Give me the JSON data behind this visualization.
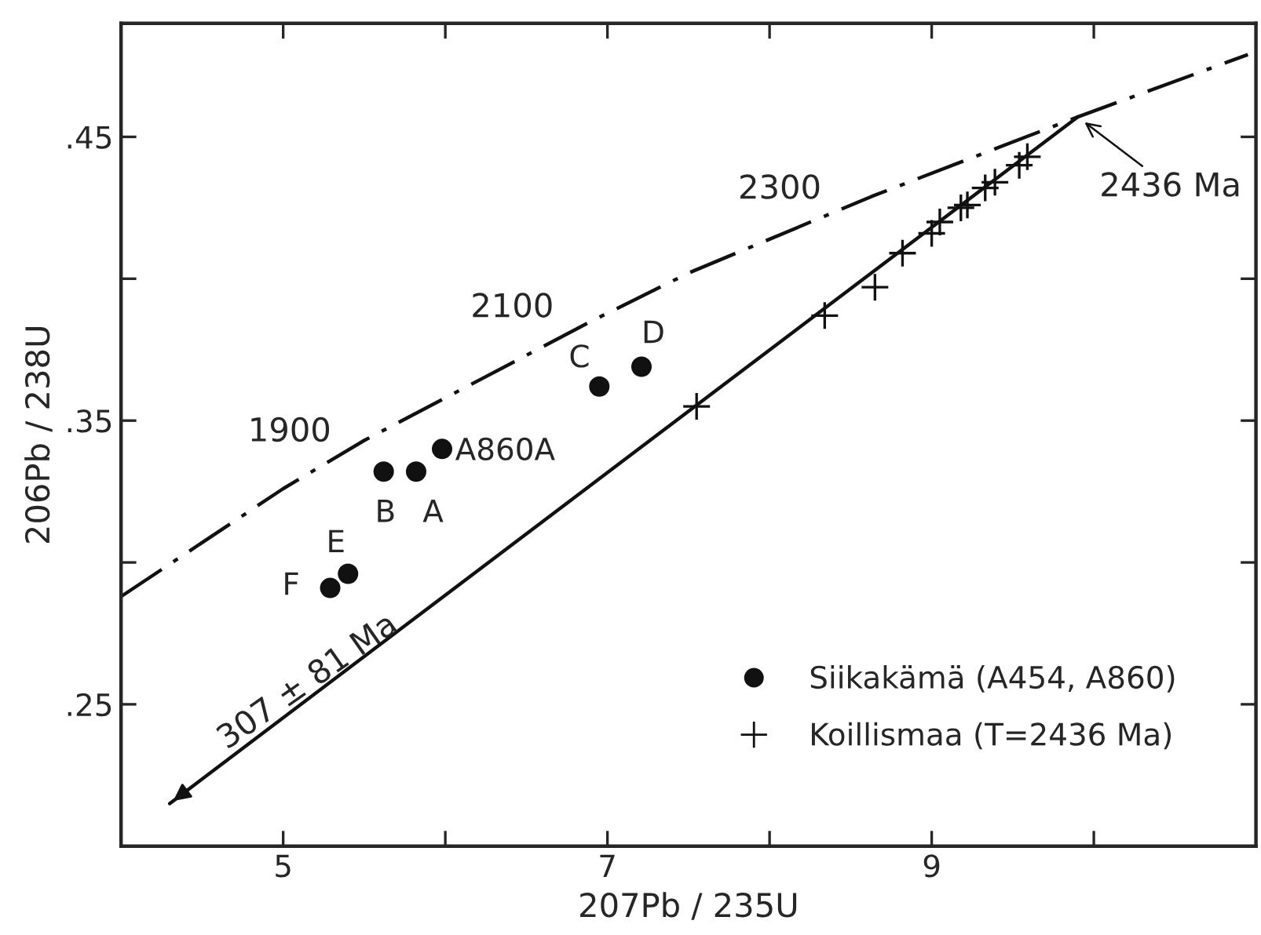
{
  "chart_data": {
    "type": "scatter",
    "xlabel": "207Pb / 235U",
    "ylabel": "206Pb / 238U",
    "xlim": [
      4,
      11
    ],
    "ylim": [
      0.2,
      0.49
    ],
    "xticks": [
      5,
      {
        "value": 6,
        "label": null
      },
      7,
      {
        "value": 8,
        "label": null
      },
      9,
      {
        "value": 10,
        "label": null
      }
    ],
    "yticks": [
      {
        "value": 0.25,
        "label": ".25"
      },
      {
        "value": 0.3,
        "label": null
      },
      {
        "value": 0.35,
        "label": ".35"
      },
      {
        "value": 0.4,
        "label": null
      },
      {
        "value": 0.45,
        "label": ".45"
      }
    ],
    "grid": false,
    "legend": "bottom right",
    "series": [
      {
        "type": "line",
        "color": "#111111",
        "line_style": "dashdot",
        "marker": "none",
        "x": [
          4.0,
          5.0,
          5.5,
          6.0,
          6.9,
          7.5,
          8.63,
          9.9,
          10.95
        ],
        "values": [
          0.288,
          0.326,
          0.343,
          0.358,
          0.385,
          0.402,
          0.429,
          0.457,
          0.479
        ]
      },
      {
        "type": "line",
        "color": "#111111",
        "line_style": "solid",
        "marker": "none",
        "x": [
          4.3,
          9.9
        ],
        "values": [
          0.215,
          0.457
        ]
      },
      {
        "name": "Siikakämä (A454, A860)",
        "color": "#111111",
        "marker": "circle",
        "x": [
          6.95,
          7.21,
          5.98,
          5.62,
          5.82,
          5.4,
          5.29
        ],
        "values": [
          0.362,
          0.369,
          0.34,
          0.332,
          0.332,
          0.296,
          0.291
        ]
      },
      {
        "name": "Koillismaa (T=2436 Ma)",
        "color": "#111111",
        "marker": "cross",
        "x": [
          7.55,
          8.34,
          8.65,
          8.82,
          9.0,
          9.05,
          9.18,
          9.22,
          9.33,
          9.39,
          9.54,
          9.59
        ],
        "values": [
          0.355,
          0.387,
          0.397,
          0.409,
          0.416,
          0.42,
          0.425,
          0.426,
          0.432,
          0.434,
          0.44,
          0.443
        ]
      }
    ],
    "annotations": [
      {
        "text": "1900",
        "x": 5.35,
        "y": 0.338
      },
      {
        "text": "2100",
        "x": 6.75,
        "y": 0.381
      },
      {
        "text": "2300",
        "x": 8.4,
        "y": 0.422
      },
      {
        "text": "2436 Ma",
        "x": 9.9,
        "y": 0.457
      },
      {
        "text": "307 ± 81 Ma",
        "x": 4.3,
        "y": 0.215
      },
      {
        "text": "C",
        "x": 6.95,
        "y": 0.362
      },
      {
        "text": "D",
        "x": 7.21,
        "y": 0.369
      },
      {
        "text": "A860A",
        "x": 5.98,
        "y": 0.34
      },
      {
        "text": "B",
        "x": 5.62,
        "y": 0.332
      },
      {
        "text": "A",
        "x": 5.82,
        "y": 0.332
      },
      {
        "text": "E",
        "x": 5.4,
        "y": 0.296
      },
      {
        "text": "F",
        "x": 5.29,
        "y": 0.291
      }
    ]
  }
}
